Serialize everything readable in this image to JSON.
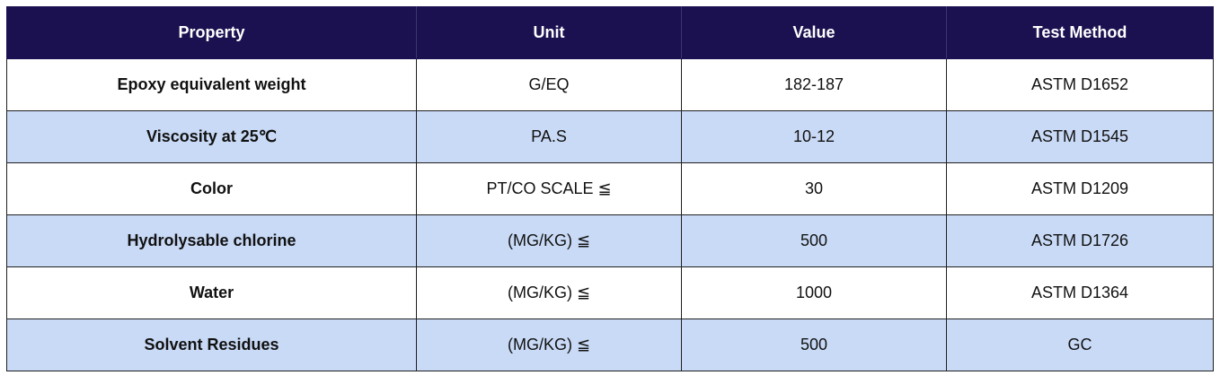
{
  "table": {
    "headers": [
      "Property",
      "Unit",
      "Value",
      "Test Method"
    ],
    "rows": [
      {
        "property": "Epoxy equivalent weight",
        "unit": "G/EQ",
        "value": "182-187",
        "method": "ASTM D1652"
      },
      {
        "property": "Viscosity at 25℃",
        "unit": "PA.S",
        "value": "10-12",
        "method": "ASTM D1545"
      },
      {
        "property": "Color",
        "unit": "PT/CO SCALE ≦",
        "value": "30",
        "method": "ASTM D1209"
      },
      {
        "property": "Hydrolysable chlorine",
        "unit": "(MG/KG) ≦",
        "value": "500",
        "method": "ASTM D1726"
      },
      {
        "property": "Water",
        "unit": "(MG/KG) ≦",
        "value": "1000",
        "method": "ASTM D1364"
      },
      {
        "property": "Solvent Residues",
        "unit": "(MG/KG) ≦",
        "value": "500",
        "method": "GC"
      }
    ]
  },
  "colors": {
    "header_bg": "#1b1150",
    "header_text": "#ffffff",
    "row_alt_bg": "#c9daf6",
    "row_bg": "#ffffff"
  }
}
